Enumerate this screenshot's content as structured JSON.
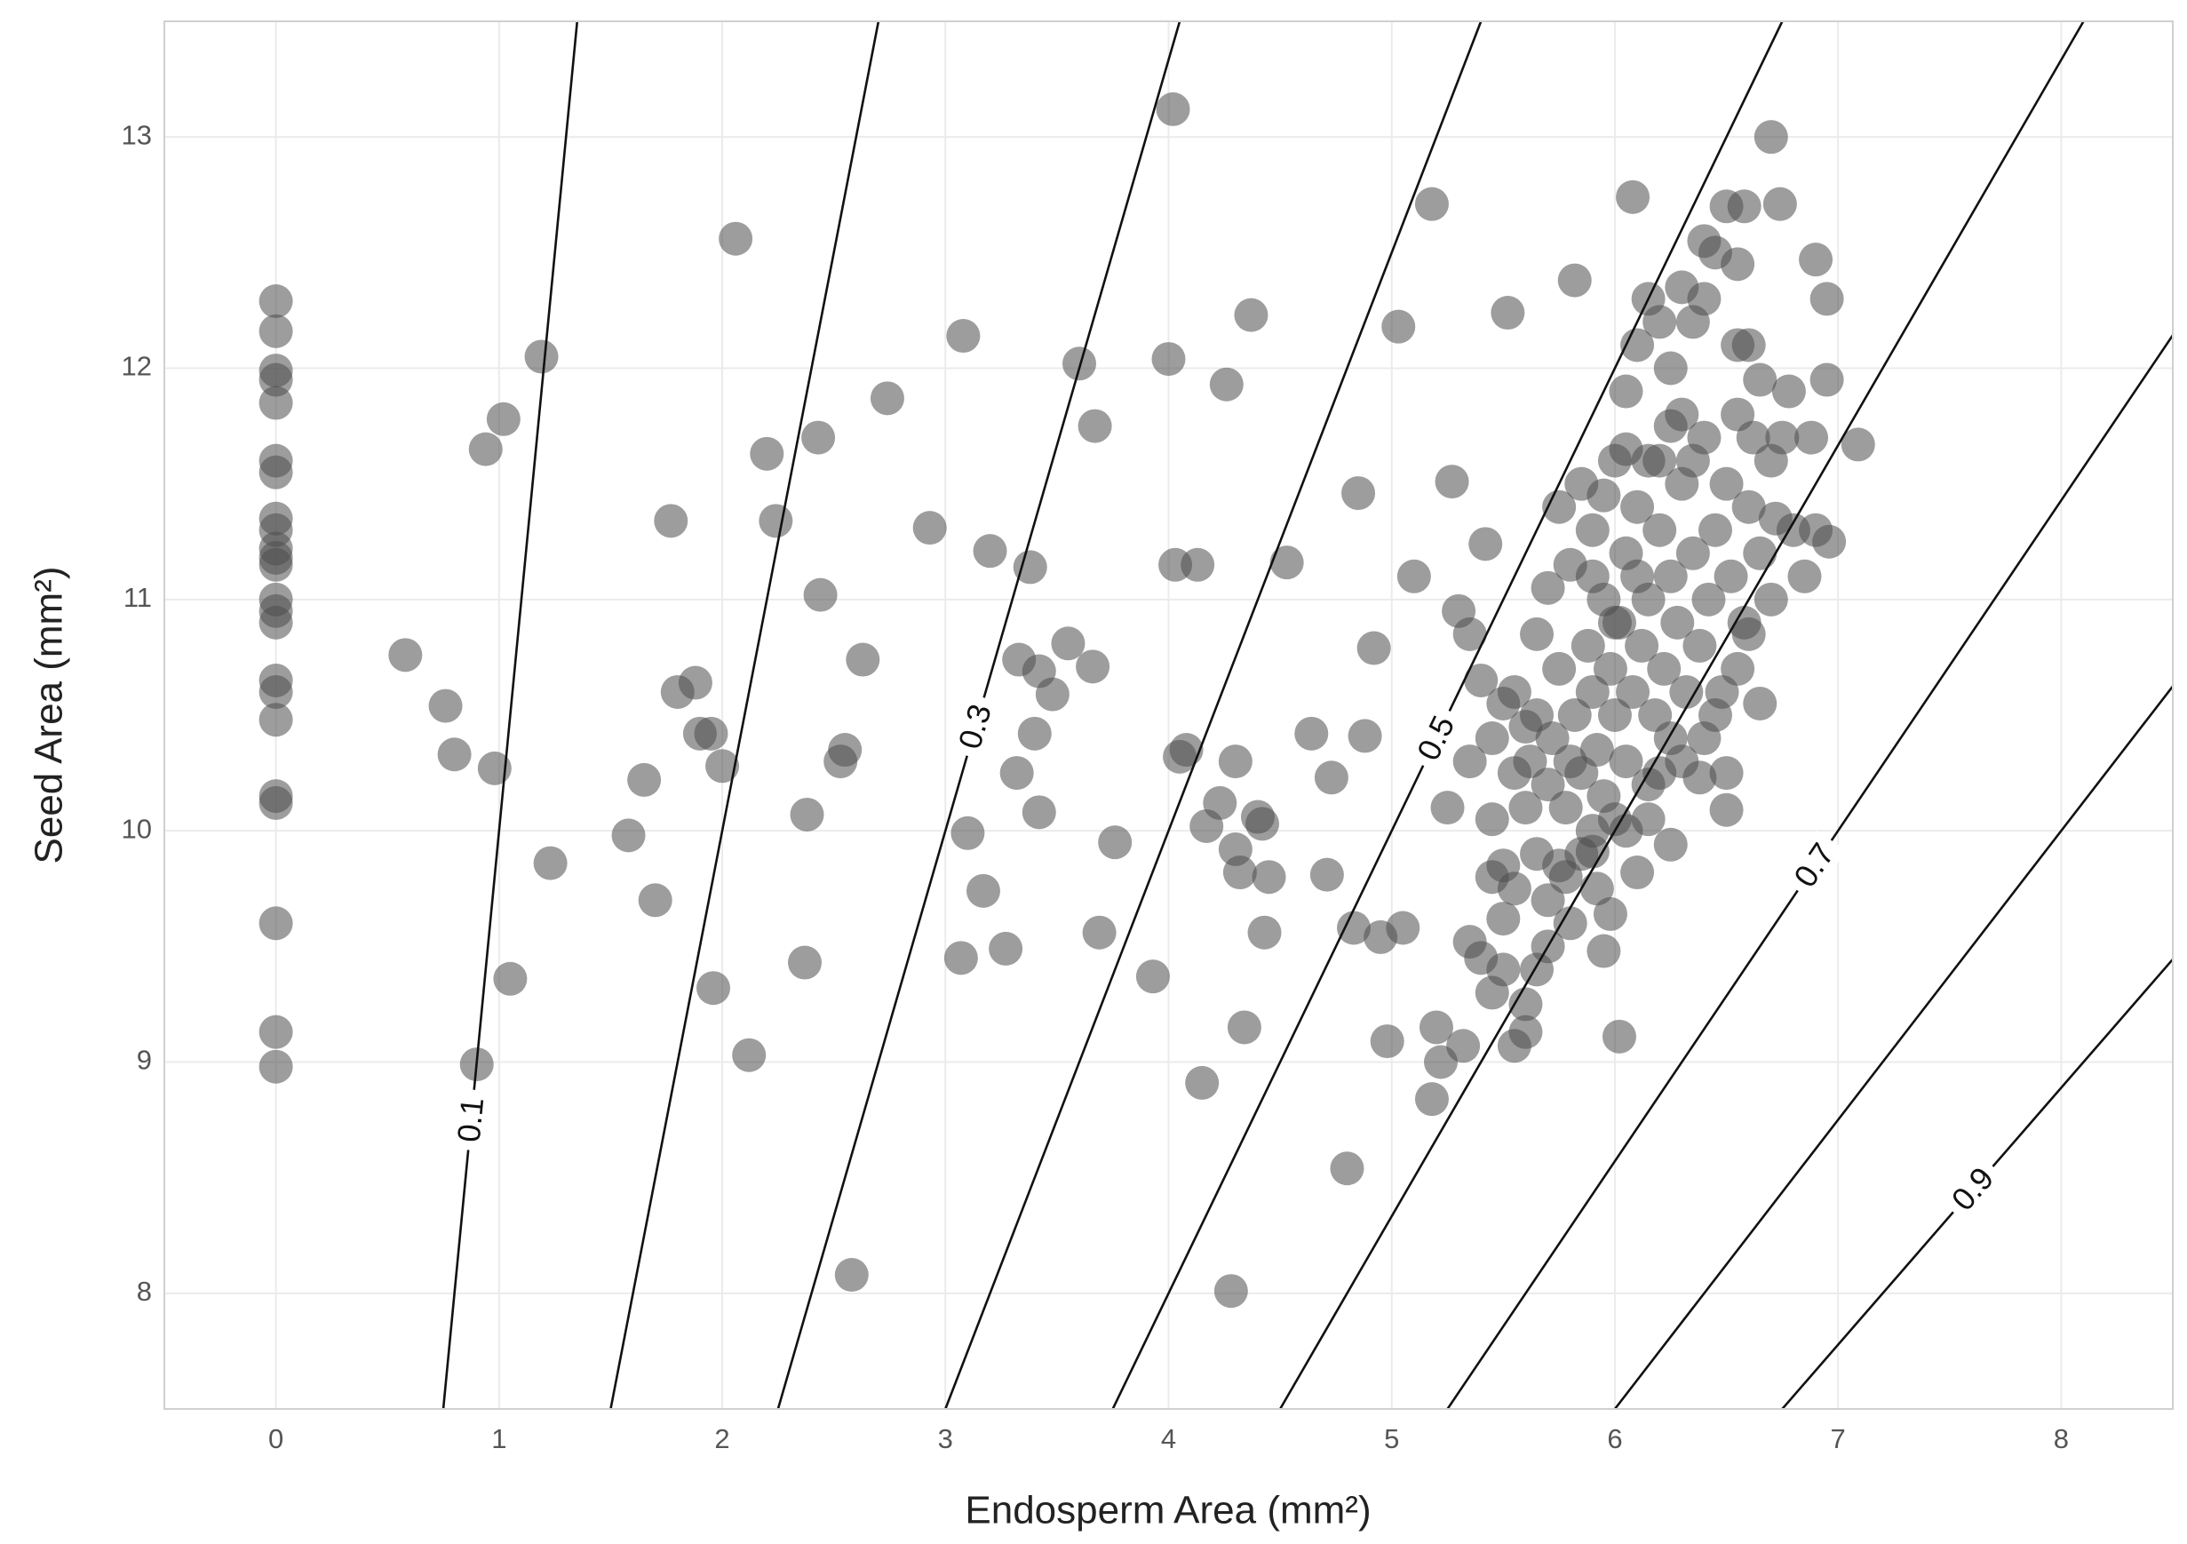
{
  "chart_data": {
    "type": "scatter",
    "x_label": "Endosperm Area (mm²)",
    "y_label": "Seed Area (mm²)",
    "xlim": [
      -0.5,
      8.5
    ],
    "ylim": [
      7.5,
      13.5
    ],
    "xticks": [
      0,
      1,
      2,
      3,
      4,
      5,
      6,
      7,
      8
    ],
    "yticks": [
      8,
      9,
      10,
      11,
      12,
      13
    ],
    "grid": true,
    "color": "#4d4d4d",
    "contours": [
      {
        "value": 0.1,
        "label": "0.1"
      },
      0.2,
      {
        "value": 0.3,
        "label": "0.3"
      },
      0.4,
      {
        "value": 0.5,
        "label": "0.5"
      },
      0.6,
      {
        "value": 0.7,
        "label": "0.7"
      },
      0.8,
      {
        "value": 0.9,
        "label": "0.9"
      }
    ],
    "x": [
      0,
      0,
      0,
      0,
      0,
      0,
      0,
      0,
      0,
      0,
      0,
      0,
      0,
      0,
      0,
      0,
      0,
      0,
      0,
      0,
      0,
      0,
      0,
      0.58,
      0.76,
      0.8,
      0.9,
      0.94,
      1.02,
      0.98,
      1.05,
      1.19,
      1.23,
      1.58,
      1.65,
      1.7,
      1.77,
      1.8,
      1.88,
      1.9,
      1.95,
      1.96,
      2.0,
      2.06,
      2.12,
      2.2,
      2.24,
      2.37,
      2.38,
      2.43,
      2.44,
      2.53,
      2.55,
      2.58,
      2.63,
      2.74,
      2.93,
      3.07,
      3.08,
      3.1,
      3.17,
      3.2,
      3.27,
      3.32,
      3.33,
      3.38,
      3.4,
      3.42,
      3.42,
      3.48,
      3.55,
      3.6,
      3.66,
      3.67,
      3.69,
      3.76,
      3.93,
      4.0,
      4.02,
      4.03,
      4.05,
      4.08,
      4.13,
      4.15,
      4.17,
      4.23,
      4.26,
      4.28,
      4.3,
      4.3,
      4.32,
      4.34,
      4.37,
      4.4,
      4.42,
      4.43,
      4.45,
      4.53,
      4.64,
      4.71,
      4.73,
      4.8,
      4.83,
      4.85,
      4.88,
      4.92,
      4.95,
      4.98,
      5.03,
      5.05,
      5.1,
      5.18,
      5.2,
      5.22,
      5.27,
      5.32,
      5.18,
      5.42,
      5.52,
      5.82,
      6.08,
      6.7,
      6.74,
      6.9,
      6.95,
      6.95,
      7.09,
      6.96,
      6.02,
      5.98,
      5.95,
      5.6,
      5.55,
      5.6,
      5.35,
      5.5,
      5.9,
      6.25,
      6.38,
      6.5,
      5.55,
      5.6,
      5.62,
      5.65,
      5.7,
      5.72,
      5.75,
      5.78,
      5.8,
      5.82,
      5.85,
      5.88,
      5.9,
      5.92,
      5.95,
      5.98,
      6.0,
      6.02,
      6.05,
      6.05,
      6.08,
      6.1,
      6.12,
      6.15,
      6.15,
      6.18,
      6.2,
      6.22,
      6.25,
      6.25,
      6.28,
      6.3,
      6.32,
      6.35,
      6.38,
      6.4,
      6.42,
      6.45,
      6.48,
      6.5,
      6.52,
      6.55,
      6.58,
      6.6,
      6.62,
      6.65,
      6.7,
      6.75,
      6.8,
      6.85,
      5.45,
      5.5,
      5.55,
      5.65,
      5.7,
      5.75,
      5.8,
      5.85,
      5.9,
      5.95,
      6.0,
      6.05,
      6.1,
      6.15,
      6.2,
      6.25,
      6.3,
      6.35,
      6.4,
      6.45,
      6.5,
      6.55,
      6.6,
      6.58,
      6.4,
      6.3,
      6.2,
      6.1,
      6.0,
      5.9,
      5.85,
      5.8,
      5.75,
      5.7,
      5.65,
      5.6,
      5.55,
      5.5,
      5.45,
      5.4,
      5.35,
      5.3,
      5.35,
      5.25,
      5.45,
      5.4,
      5.45,
      5.5,
      5.65,
      5.7,
      5.78,
      5.92,
      6.0,
      6.05,
      6.1,
      6.15,
      6.2,
      6.3,
      6.4,
      6.45,
      6.55,
      6.6,
      6.7,
      6.72,
      6.9,
      6.88,
      6.78,
      6.65,
      6.55,
      6.35,
      6.25,
      6.15,
      6.05,
      5.95,
      5.9,
      6.5,
      6.65
    ],
    "values": [
      12.29,
      12.16,
      11.99,
      11.95,
      11.85,
      11.6,
      11.55,
      11.35,
      11.3,
      11.22,
      11.18,
      11.15,
      11.0,
      10.95,
      10.9,
      10.65,
      10.6,
      10.48,
      10.15,
      10.12,
      9.6,
      9.13,
      8.98,
      10.76,
      10.54,
      10.33,
      8.99,
      11.65,
      11.78,
      10.27,
      9.36,
      12.05,
      9.86,
      9.98,
      10.22,
      9.7,
      11.34,
      10.6,
      10.64,
      10.42,
      10.42,
      9.32,
      10.28,
      12.56,
      9.03,
      11.63,
      11.34,
      9.43,
      10.07,
      11.7,
      11.02,
      10.3,
      10.35,
      8.08,
      10.74,
      11.87,
      11.31,
      9.45,
      12.14,
      9.99,
      9.74,
      11.21,
      9.49,
      10.25,
      10.74,
      11.14,
      10.42,
      10.69,
      10.08,
      10.59,
      10.81,
      12.02,
      10.71,
      11.75,
      9.56,
      9.95,
      9.37,
      12.04,
      13.12,
      11.15,
      10.32,
      10.35,
      11.15,
      8.91,
      10.02,
      10.12,
      11.93,
      8.01,
      10.3,
      9.92,
      9.82,
      9.15,
      12.23,
      10.06,
      10.03,
      9.56,
      9.8,
      11.16,
      10.42,
      9.81,
      10.23,
      8.54,
      9.58,
      11.46,
      10.41,
      10.79,
      9.54,
      9.09,
      12.18,
      9.58,
      11.1,
      12.71,
      9.15,
      9.0,
      11.51,
      9.07,
      8.84,
      11.24,
      12.24,
      12.38,
      12.74,
      13.0,
      12.71,
      12.47,
      12.3,
      11.95,
      11.67,
      11.25,
      9.11,
      9.64,
      9.48,
      9.13,
      9.07,
      9.25,
      9.52,
      9.62,
      9.91,
      9.94,
      10.23,
      10.09,
      10.6,
      10.45,
      10.3,
      10.5,
      10.2,
      10.4,
      10.7,
      10.1,
      10.3,
      10.5,
      10.25,
      10.8,
      10.6,
      10.35,
      11.0,
      10.7,
      10.5,
      10.9,
      11.2,
      10.3,
      10.6,
      11.4,
      10.8,
      11.0,
      10.2,
      10.5,
      11.3,
      10.7,
      11.1,
      10.4,
      10.9,
      11.5,
      10.6,
      11.2,
      10.8,
      11.7,
      11.0,
      11.3,
      10.6,
      11.5,
      11.1,
      11.8,
      10.9,
      11.4,
      11.7,
      11.2,
      11.6,
      11.7,
      11.3,
      11.1,
      9.8,
      9.85,
      9.75,
      9.9,
      9.7,
      9.85,
      9.6,
      9.9,
      10.0,
      10.15,
      11.6,
      11.9,
      12.1,
      12.3,
      12.2,
      12.0,
      12.35,
      12.2,
      12.3,
      12.5,
      12.7,
      12.45,
      12.1,
      12.7,
      12.55,
      11.8,
      11.6,
      11.1,
      10.9,
      11.3,
      11.5,
      11.15,
      11.4,
      11.05,
      10.85,
      10.1,
      10.25,
      10.55,
      10.4,
      10.65,
      10.85,
      10.95,
      10.3,
      10.1,
      10.05,
      9.45,
      9.3,
      9.4,
      9.4,
      9.5,
      9.8,
      9.75,
      10.05,
      10.0,
      9.82,
      10.05,
      10.25,
      10.3,
      10.4,
      10.5,
      10.7,
      10.85,
      11.0,
      11.35,
      11.3,
      11.7,
      11.9,
      11.95,
      12.1,
      11.6,
      11.75,
      11.6,
      11.65,
      11.45,
      11.1,
      10.25,
      10.55
    ]
  }
}
